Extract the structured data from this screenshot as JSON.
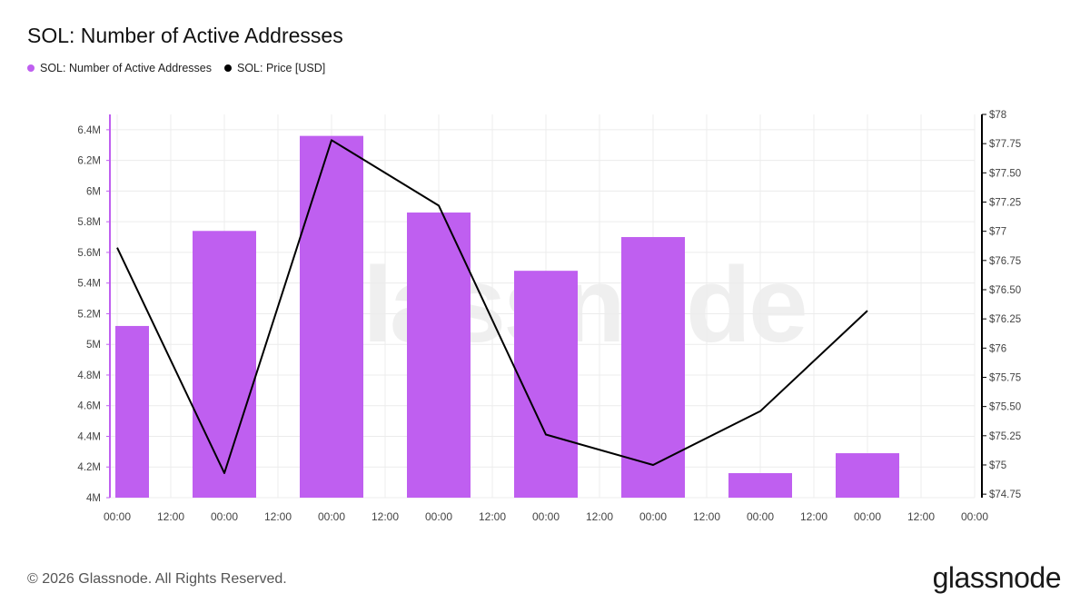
{
  "header": {
    "title": "SOL: Number of Active Addresses"
  },
  "legend": {
    "items": [
      {
        "label": "SOL: Number of Active Addresses",
        "color": "#bf5ff0"
      },
      {
        "label": "SOL: Price [USD]",
        "color": "#000000"
      }
    ]
  },
  "footer": {
    "copyright": "© 2026 Glassnode. All Rights Reserved.",
    "brand": "glassnode"
  },
  "watermark": "glassnode",
  "colors": {
    "bar": "#bf5ff0",
    "line": "#000000",
    "left_axis": "#bf5ff0",
    "right_axis": "#000000",
    "grid": "#ececec"
  },
  "chart_data": {
    "type": "bar",
    "title": "SOL: Number of Active Addresses",
    "x_tick_labels": [
      "00:00",
      "12:00",
      "00:00",
      "12:00",
      "00:00",
      "12:00",
      "00:00",
      "12:00",
      "00:00",
      "12:00",
      "00:00",
      "12:00",
      "00:00",
      "12:00",
      "00:00",
      "12:00",
      "00:00"
    ],
    "grid": true,
    "legend_position": "top-left",
    "y_left": {
      "ticks": [
        4000000,
        4200000,
        4400000,
        4600000,
        4800000,
        5000000,
        5200000,
        5400000,
        5600000,
        5800000,
        6000000,
        6200000,
        6400000
      ],
      "tick_labels": [
        "4M",
        "4.2M",
        "4.4M",
        "4.6M",
        "4.8M",
        "5M",
        "5.2M",
        "5.4M",
        "5.6M",
        "5.8M",
        "6M",
        "6.2M",
        "6.4M"
      ],
      "range": [
        4000000,
        6500000
      ]
    },
    "y_right": {
      "ticks": [
        74.75,
        75,
        75.25,
        75.5,
        75.75,
        76,
        76.25,
        76.5,
        76.75,
        77,
        77.25,
        77.5,
        77.75,
        78
      ],
      "tick_labels": [
        "$74.75",
        "$75",
        "$75.25",
        "$75.50",
        "$75.75",
        "$76",
        "$76.25",
        "$76.50",
        "$76.75",
        "$77",
        "$77.25",
        "$77.50",
        "$77.75",
        "$78"
      ],
      "range": [
        74.72,
        78
      ]
    },
    "series": [
      {
        "name": "SOL: Number of Active Addresses",
        "type": "bar",
        "axis": "left",
        "x": [
          0,
          2,
          4,
          6,
          8,
          10,
          12,
          14
        ],
        "values": [
          5120000,
          5740000,
          6360000,
          5860000,
          5480000,
          5700000,
          4160000,
          4290000
        ]
      },
      {
        "name": "SOL: Price [USD]",
        "type": "line",
        "axis": "right",
        "x": [
          0,
          2,
          4,
          6,
          8,
          10,
          12,
          14
        ],
        "values": [
          76.86,
          74.93,
          77.78,
          77.22,
          75.26,
          75.0,
          75.46,
          76.32
        ]
      }
    ]
  }
}
